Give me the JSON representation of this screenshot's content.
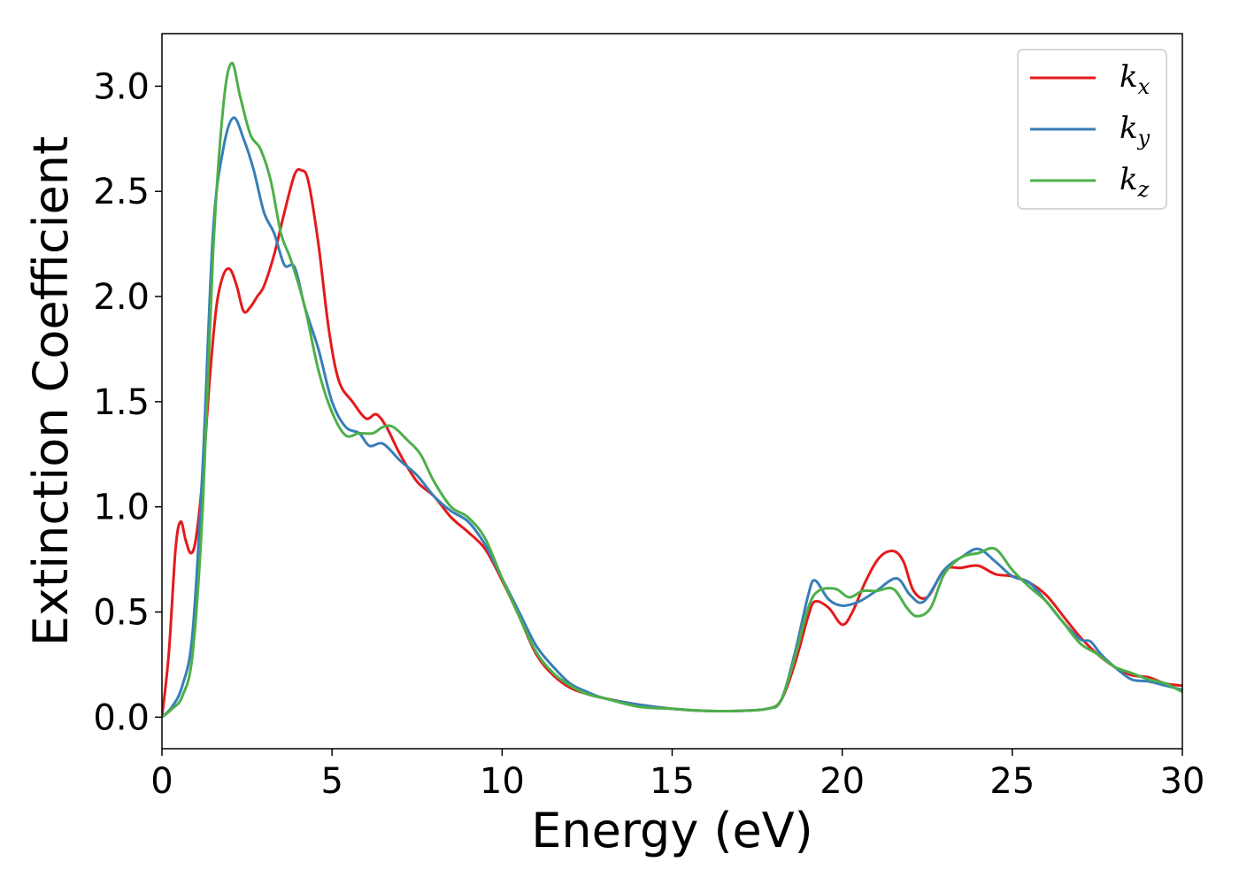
{
  "chart_data": {
    "type": "line",
    "title": "",
    "xlabel": "Energy (eV)",
    "ylabel": "Extinction Coefficient",
    "xlim": [
      0,
      30
    ],
    "ylim": [
      -0.15,
      3.25
    ],
    "xticks": [
      0,
      5,
      10,
      15,
      20,
      25,
      30
    ],
    "xtick_labels": [
      "0",
      "5",
      "10",
      "15",
      "20",
      "25",
      "30"
    ],
    "yticks": [
      0.0,
      0.5,
      1.0,
      1.5,
      2.0,
      2.5,
      3.0
    ],
    "ytick_labels": [
      "0.0",
      "0.5",
      "1.0",
      "1.5",
      "2.0",
      "2.5",
      "3.0"
    ],
    "grid": false,
    "legend_position": "top-right",
    "series": [
      {
        "name": "k",
        "subscript": "x",
        "color": "#e41a1c",
        "points": [
          [
            0,
            0
          ],
          [
            0.2,
            0.3
          ],
          [
            0.4,
            0.8
          ],
          [
            0.55,
            0.93
          ],
          [
            0.7,
            0.84
          ],
          [
            0.85,
            0.78
          ],
          [
            1.0,
            0.85
          ],
          [
            1.2,
            1.15
          ],
          [
            1.4,
            1.6
          ],
          [
            1.6,
            1.95
          ],
          [
            1.8,
            2.1
          ],
          [
            2.0,
            2.13
          ],
          [
            2.2,
            2.05
          ],
          [
            2.4,
            1.93
          ],
          [
            2.6,
            1.95
          ],
          [
            2.8,
            2.0
          ],
          [
            3.0,
            2.05
          ],
          [
            3.3,
            2.2
          ],
          [
            3.6,
            2.4
          ],
          [
            3.9,
            2.58
          ],
          [
            4.1,
            2.6
          ],
          [
            4.3,
            2.55
          ],
          [
            4.6,
            2.25
          ],
          [
            4.9,
            1.85
          ],
          [
            5.2,
            1.6
          ],
          [
            5.6,
            1.5
          ],
          [
            6.0,
            1.42
          ],
          [
            6.3,
            1.44
          ],
          [
            6.6,
            1.38
          ],
          [
            7.0,
            1.25
          ],
          [
            7.5,
            1.12
          ],
          [
            8.0,
            1.05
          ],
          [
            8.5,
            0.95
          ],
          [
            9.0,
            0.88
          ],
          [
            9.5,
            0.8
          ],
          [
            10.0,
            0.65
          ],
          [
            10.5,
            0.48
          ],
          [
            11.0,
            0.3
          ],
          [
            11.5,
            0.2
          ],
          [
            12.0,
            0.14
          ],
          [
            12.5,
            0.11
          ],
          [
            13.0,
            0.09
          ],
          [
            14.0,
            0.06
          ],
          [
            15.0,
            0.04
          ],
          [
            16.0,
            0.03
          ],
          [
            17.0,
            0.03
          ],
          [
            17.8,
            0.04
          ],
          [
            18.2,
            0.08
          ],
          [
            18.6,
            0.25
          ],
          [
            19.0,
            0.48
          ],
          [
            19.2,
            0.55
          ],
          [
            19.6,
            0.52
          ],
          [
            20.0,
            0.44
          ],
          [
            20.3,
            0.5
          ],
          [
            20.7,
            0.65
          ],
          [
            21.1,
            0.76
          ],
          [
            21.5,
            0.79
          ],
          [
            21.8,
            0.74
          ],
          [
            22.1,
            0.6
          ],
          [
            22.5,
            0.57
          ],
          [
            23.0,
            0.7
          ],
          [
            23.5,
            0.71
          ],
          [
            24.0,
            0.72
          ],
          [
            24.5,
            0.68
          ],
          [
            25.0,
            0.67
          ],
          [
            25.5,
            0.64
          ],
          [
            26.0,
            0.58
          ],
          [
            26.5,
            0.48
          ],
          [
            27.0,
            0.38
          ],
          [
            27.5,
            0.3
          ],
          [
            28.0,
            0.24
          ],
          [
            28.5,
            0.2
          ],
          [
            29.0,
            0.19
          ],
          [
            29.5,
            0.16
          ],
          [
            30.0,
            0.15
          ]
        ]
      },
      {
        "name": "k",
        "subscript": "y",
        "color": "#377eb8",
        "points": [
          [
            0,
            0
          ],
          [
            0.3,
            0.05
          ],
          [
            0.6,
            0.15
          ],
          [
            0.9,
            0.4
          ],
          [
            1.2,
            1.2
          ],
          [
            1.5,
            2.3
          ],
          [
            1.8,
            2.7
          ],
          [
            2.1,
            2.85
          ],
          [
            2.4,
            2.75
          ],
          [
            2.7,
            2.6
          ],
          [
            3.0,
            2.4
          ],
          [
            3.3,
            2.3
          ],
          [
            3.6,
            2.15
          ],
          [
            3.9,
            2.14
          ],
          [
            4.2,
            1.95
          ],
          [
            4.6,
            1.75
          ],
          [
            5.0,
            1.5
          ],
          [
            5.4,
            1.38
          ],
          [
            5.8,
            1.35
          ],
          [
            6.1,
            1.29
          ],
          [
            6.5,
            1.3
          ],
          [
            7.0,
            1.22
          ],
          [
            7.5,
            1.15
          ],
          [
            8.0,
            1.05
          ],
          [
            8.5,
            0.98
          ],
          [
            9.0,
            0.93
          ],
          [
            9.5,
            0.82
          ],
          [
            10.0,
            0.66
          ],
          [
            10.5,
            0.5
          ],
          [
            11.0,
            0.34
          ],
          [
            11.5,
            0.24
          ],
          [
            12.0,
            0.16
          ],
          [
            12.5,
            0.12
          ],
          [
            13.0,
            0.09
          ],
          [
            14.0,
            0.06
          ],
          [
            15.0,
            0.04
          ],
          [
            16.0,
            0.03
          ],
          [
            17.0,
            0.03
          ],
          [
            17.8,
            0.04
          ],
          [
            18.2,
            0.08
          ],
          [
            18.6,
            0.3
          ],
          [
            19.0,
            0.58
          ],
          [
            19.2,
            0.65
          ],
          [
            19.6,
            0.56
          ],
          [
            20.0,
            0.53
          ],
          [
            20.5,
            0.55
          ],
          [
            21.0,
            0.6
          ],
          [
            21.6,
            0.66
          ],
          [
            22.0,
            0.58
          ],
          [
            22.4,
            0.55
          ],
          [
            23.0,
            0.7
          ],
          [
            23.5,
            0.76
          ],
          [
            24.0,
            0.8
          ],
          [
            24.5,
            0.74
          ],
          [
            25.0,
            0.67
          ],
          [
            25.5,
            0.64
          ],
          [
            26.0,
            0.55
          ],
          [
            26.5,
            0.45
          ],
          [
            27.0,
            0.37
          ],
          [
            27.3,
            0.36
          ],
          [
            27.6,
            0.3
          ],
          [
            28.0,
            0.24
          ],
          [
            28.5,
            0.18
          ],
          [
            29.0,
            0.17
          ],
          [
            29.5,
            0.15
          ],
          [
            30.0,
            0.13
          ]
        ]
      },
      {
        "name": "k",
        "subscript": "z",
        "color": "#4daf4a",
        "points": [
          [
            0,
            0
          ],
          [
            0.3,
            0.04
          ],
          [
            0.6,
            0.1
          ],
          [
            0.9,
            0.3
          ],
          [
            1.2,
            1.0
          ],
          [
            1.5,
            2.2
          ],
          [
            1.8,
            2.9
          ],
          [
            2.05,
            3.11
          ],
          [
            2.3,
            2.95
          ],
          [
            2.6,
            2.77
          ],
          [
            2.9,
            2.7
          ],
          [
            3.2,
            2.55
          ],
          [
            3.5,
            2.3
          ],
          [
            3.8,
            2.17
          ],
          [
            4.2,
            1.95
          ],
          [
            4.6,
            1.65
          ],
          [
            5.0,
            1.45
          ],
          [
            5.4,
            1.34
          ],
          [
            5.8,
            1.35
          ],
          [
            6.2,
            1.35
          ],
          [
            6.5,
            1.38
          ],
          [
            6.8,
            1.38
          ],
          [
            7.2,
            1.32
          ],
          [
            7.6,
            1.25
          ],
          [
            8.0,
            1.12
          ],
          [
            8.5,
            1.0
          ],
          [
            9.0,
            0.95
          ],
          [
            9.5,
            0.85
          ],
          [
            10.0,
            0.66
          ],
          [
            10.5,
            0.48
          ],
          [
            11.0,
            0.31
          ],
          [
            11.5,
            0.21
          ],
          [
            12.0,
            0.15
          ],
          [
            12.5,
            0.11
          ],
          [
            13.0,
            0.09
          ],
          [
            14.0,
            0.05
          ],
          [
            15.0,
            0.04
          ],
          [
            16.0,
            0.03
          ],
          [
            17.0,
            0.03
          ],
          [
            17.8,
            0.04
          ],
          [
            18.2,
            0.08
          ],
          [
            18.6,
            0.28
          ],
          [
            19.0,
            0.52
          ],
          [
            19.3,
            0.6
          ],
          [
            19.8,
            0.61
          ],
          [
            20.2,
            0.57
          ],
          [
            20.6,
            0.6
          ],
          [
            21.0,
            0.6
          ],
          [
            21.5,
            0.61
          ],
          [
            21.9,
            0.52
          ],
          [
            22.2,
            0.48
          ],
          [
            22.6,
            0.52
          ],
          [
            23.0,
            0.68
          ],
          [
            23.5,
            0.76
          ],
          [
            24.0,
            0.78
          ],
          [
            24.5,
            0.8
          ],
          [
            25.0,
            0.7
          ],
          [
            25.5,
            0.62
          ],
          [
            26.0,
            0.55
          ],
          [
            26.5,
            0.45
          ],
          [
            27.0,
            0.35
          ],
          [
            27.5,
            0.3
          ],
          [
            28.0,
            0.24
          ],
          [
            28.5,
            0.21
          ],
          [
            29.0,
            0.18
          ],
          [
            29.5,
            0.16
          ],
          [
            30.0,
            0.12
          ]
        ]
      }
    ]
  }
}
